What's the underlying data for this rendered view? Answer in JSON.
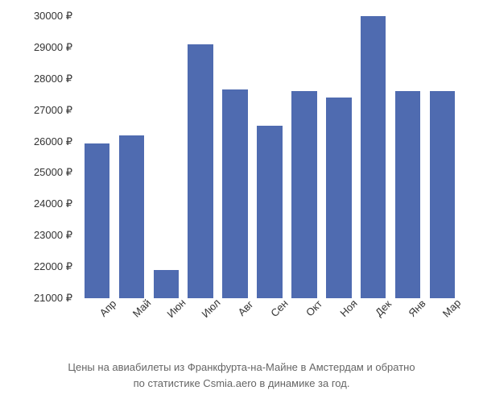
{
  "chart": {
    "type": "bar",
    "categories": [
      "Апр",
      "Май",
      "Июн",
      "Июл",
      "Авг",
      "Сен",
      "Окт",
      "Ноя",
      "Дек",
      "Янв",
      "Мар"
    ],
    "values": [
      25950,
      26200,
      21900,
      29100,
      27650,
      26500,
      27600,
      27400,
      30000,
      27600,
      27600
    ],
    "bar_color": "#4f6bb0",
    "background_color": "#ffffff",
    "ylim": [
      21000,
      30000
    ],
    "yticks": [
      21000,
      22000,
      23000,
      24000,
      25000,
      26000,
      27000,
      28000,
      29000,
      30000
    ],
    "ytick_labels": [
      "21000 ₽",
      "22000 ₽",
      "23000 ₽",
      "24000 ₽",
      "25000 ₽",
      "26000 ₽",
      "27000 ₽",
      "28000 ₽",
      "29000 ₽",
      "30000 ₽"
    ],
    "ytick_step": 1000,
    "y_label_fontsize": 13,
    "x_label_fontsize": 13,
    "x_label_rotation": -45,
    "bar_gap_percent": 2.5,
    "text_color": "#333333",
    "caption_color": "#666666",
    "caption_fontsize": 13
  },
  "caption": {
    "line1": "Цены на авиабилеты из Франкфурта-на-Майне в Амстердам и обратно",
    "line2": "по статистике Csmia.aero в динамике за год."
  }
}
